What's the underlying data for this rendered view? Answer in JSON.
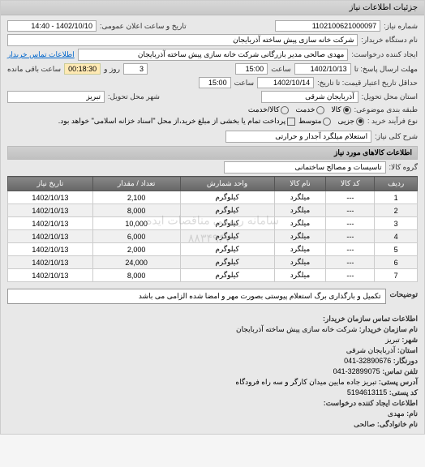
{
  "panel_title": "جزئیات اطلاعات نیاز",
  "top": {
    "req_no_label": "شماره نیاز:",
    "req_no": "1102100621000097",
    "announce_label": "تاریخ و ساعت اعلان عمومی:",
    "announce_value": "1402/10/10 - 14:40",
    "buyer_label": "نام دستگاه خریدار:",
    "buyer_value": "شرکت خانه سازی پیش ساخته آذربایجان",
    "requester_label": "ایجاد کننده درخواست:",
    "requester_value": "مهدی صالحی مدیر بازرگانی شرکت خانه سازی پیش ساخته آذربایجان",
    "contact_link": "اطلاعات تماس خریدار",
    "deadline_send_label": "مهلت ارسال پاسخ: تا",
    "deadline_send_date": "1402/10/13",
    "time_label": "ساعت",
    "deadline_send_time": "15:00",
    "remain_label": "ساعت باقی مانده",
    "remain_days": "3",
    "remain_days_label": "روز و",
    "remain_time": "00:18:30",
    "valid_until_label": "حداقل تاریخ اعتبار قیمت: تا تاریخ:",
    "valid_until_date": "1402/10/14",
    "valid_until_time": "15:00",
    "province_label": "استان محل تحویل:",
    "province_value": "آذربایجان شرقی",
    "city_label": "شهر محل تحویل:",
    "city_value": "تبریز",
    "topic_class_label": "طبقه بندی موضوعی:",
    "topic_goods": "کالا",
    "topic_service": "خدمت",
    "topic_goods_service": "کالا/خدمت",
    "process_type_label": "نوع فرآیند خرید :",
    "proc_partial": "جزیی",
    "proc_medium": "متوسط",
    "proc_note": "پرداخت تمام یا بخشی از مبلغ خرید،از محل \"اسناد خزانه اسلامی\" خواهد بود.",
    "summary_label": "شرح کلی نیاز:",
    "summary_value": "استعلام میلگرد آجدار و حرارتی"
  },
  "goods": {
    "section_title": "اطلاعات کالاهای مورد نیاز",
    "group_label": "گروه کالا:",
    "group_value": "تاسیسات و مصالح ساختمانی",
    "columns": {
      "row": "ردیف",
      "code": "کد کالا",
      "name": "نام کالا",
      "unit": "واحد شمارش",
      "qty": "تعداد / مقدار",
      "date": "تاریخ نیاز"
    },
    "rows": [
      {
        "row": "1",
        "code": "---",
        "name": "میلگرد",
        "unit": "کیلوگرم",
        "qty": "2,100",
        "date": "1402/10/13"
      },
      {
        "row": "2",
        "code": "---",
        "name": "میلگرد",
        "unit": "کیلوگرم",
        "qty": "8,000",
        "date": "1402/10/13"
      },
      {
        "row": "3",
        "code": "---",
        "name": "میلگرد",
        "unit": "کیلوگرم",
        "qty": "10,000",
        "date": "1402/10/13"
      },
      {
        "row": "4",
        "code": "---",
        "name": "میلگرد",
        "unit": "کیلوگرم",
        "qty": "6,000",
        "date": "1402/10/13"
      },
      {
        "row": "5",
        "code": "---",
        "name": "میلگرد",
        "unit": "کیلوگرم",
        "qty": "2,000",
        "date": "1402/10/13"
      },
      {
        "row": "6",
        "code": "---",
        "name": "میلگرد",
        "unit": "کیلوگرم",
        "qty": "24,000",
        "date": "1402/10/13"
      },
      {
        "row": "7",
        "code": "---",
        "name": "میلگرد",
        "unit": "کیلوگرم",
        "qty": "8,000",
        "date": "1402/10/13"
      }
    ],
    "watermark_line1": "سامانه رسمی مناقصات ایده",
    "watermark_line2": "۸۸۳۴۹۶۷۰",
    "note_label": "توضیحات",
    "note_text": "تکمیل و بارگذاری برگ استعلام پیوستی بصورت مهر و امضا شده الزامی می باشد"
  },
  "contact": {
    "header": "اطلاعات تماس سازمان خریدار:",
    "org_label": "نام سازمان خریدار:",
    "org_value": "شرکت خانه سازی پیش ساخته آذربایجان",
    "city_label": "شهر:",
    "city_value": "تبریز",
    "province_label": "استان:",
    "province_value": "آذربایجان شرقی",
    "fax_label": "دورنگار:",
    "fax_value": "32890676-041",
    "phone_label": "تلفن تماس:",
    "phone_value": "32899075-041",
    "address_label": "آدرس پستی:",
    "address_value": "تبریز جاده مایین میدان کارگر و سه راه فرودگاه",
    "postal_label": "کد پستی:",
    "postal_value": "5194613115",
    "creator_header": "اطلاعات ایجاد کننده درخواست:",
    "fname_label": "نام:",
    "fname_value": "مهدی",
    "lname_label": "نام خانوادگی:",
    "lname_value": "صالحی"
  }
}
